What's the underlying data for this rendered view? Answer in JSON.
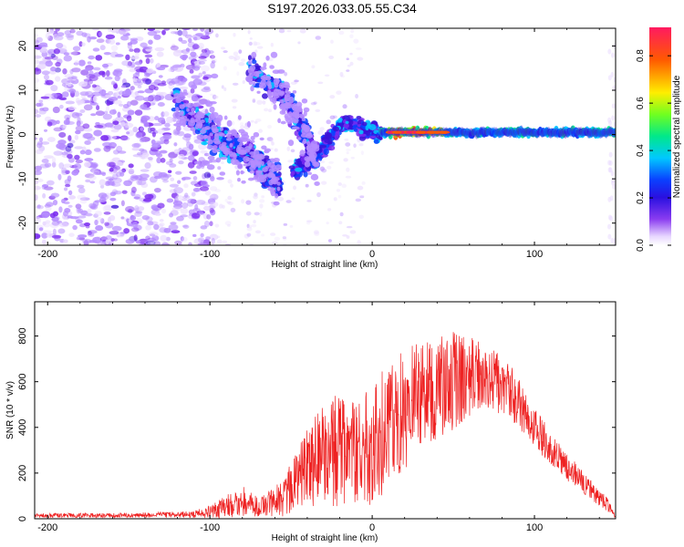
{
  "figure_title": "S197.2026.033.05.55.C34",
  "colors": {
    "snr_line": "#ee2222",
    "blob_colormap": [
      "#e8d8ff",
      "#b58cff",
      "#7a2bf0",
      "#3a10d8",
      "#0a40ff",
      "#00c8ff",
      "#00e88a",
      "#70ff20",
      "#ffee00",
      "#ff5a00",
      "#ff1a60"
    ]
  },
  "chart_data": [
    {
      "type": "heatmap",
      "name": "spectral-heatmap",
      "xlabel": "Height of straight line (km)",
      "ylabel": "Frequency (Hz)",
      "xlim": [
        -208,
        150
      ],
      "ylim": [
        -25,
        24
      ],
      "xticks": [
        -200,
        -100,
        0,
        100
      ],
      "yticks": [
        -20,
        -10,
        0,
        10,
        20
      ],
      "colorbar": {
        "label": "Normalized spectral amplitude",
        "range": [
          0.0,
          0.92
        ],
        "ticks": [
          "0.0",
          "0.2",
          "0.4",
          "0.6",
          "0.8"
        ]
      },
      "features": {
        "noise_region_km": [
          -208,
          -100
        ],
        "descending_track_1": [
          [
            -120,
            7
          ],
          [
            -105,
            2
          ],
          [
            -95,
            -1
          ],
          [
            -85,
            -3
          ],
          [
            -75,
            -5
          ],
          [
            -65,
            -8
          ],
          [
            -57,
            -11
          ]
        ],
        "descending_track_2": [
          [
            -75,
            15
          ],
          [
            -65,
            12
          ],
          [
            -55,
            9
          ],
          [
            -48,
            5
          ],
          [
            -42,
            1
          ],
          [
            -38,
            -3
          ],
          [
            -35,
            -6
          ]
        ],
        "recovery_track": [
          [
            -48,
            -8
          ],
          [
            -40,
            -6
          ],
          [
            -32,
            -3
          ],
          [
            -25,
            0
          ],
          [
            -15,
            3
          ],
          [
            -5,
            1
          ],
          [
            5,
            0.5
          ]
        ],
        "steady_band": {
          "frequency_hz": 0.5,
          "from_km": 5,
          "to_km": 150,
          "peak_km": [
            10,
            45
          ],
          "peak_amplitude": 0.9
        }
      }
    },
    {
      "type": "line",
      "name": "snr-line",
      "xlabel": "Height of straight line (km)",
      "ylabel": "SNR (10 * v/v)",
      "xlim": [
        -208,
        150
      ],
      "ylim": [
        0,
        950
      ],
      "xticks": [
        -200,
        -100,
        0,
        100
      ],
      "yticks": [
        0,
        200,
        400,
        600,
        800
      ],
      "envelope": {
        "x": [
          -208,
          -150,
          -110,
          -95,
          -80,
          -70,
          -55,
          -40,
          -25,
          -10,
          0,
          15,
          30,
          50,
          70,
          85,
          100,
          115,
          130,
          145,
          150
        ],
        "mean": [
          15,
          15,
          20,
          40,
          80,
          50,
          90,
          230,
          300,
          280,
          320,
          460,
          560,
          600,
          640,
          560,
          400,
          260,
          160,
          60,
          10
        ],
        "amplitude": [
          10,
          10,
          15,
          40,
          70,
          40,
          80,
          180,
          250,
          230,
          260,
          300,
          240,
          220,
          160,
          120,
          90,
          70,
          50,
          30,
          8
        ]
      }
    }
  ]
}
